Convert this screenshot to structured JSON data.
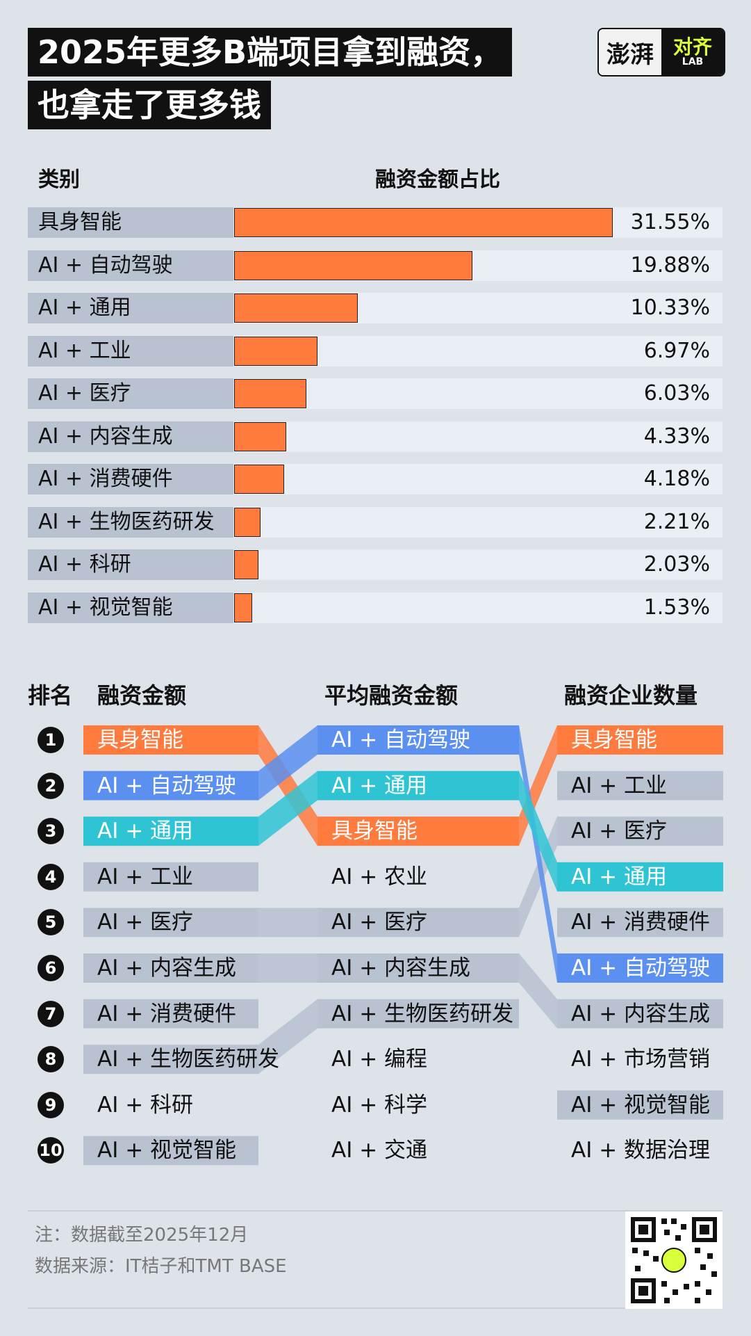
{
  "title_line1": "2025年更多B端项目拿到融资，",
  "title_line2": "也拿走了更多钱",
  "logo": {
    "left": "澎湃",
    "right_top": "对齐",
    "right_bottom": "LAB"
  },
  "chart_data": [
    {
      "type": "bar",
      "orientation": "horizontal",
      "header_category": "类别",
      "header_value": "融资金额占比",
      "categories": [
        "具身智能",
        "AI + 自动驾驶",
        "AI + 通用",
        "AI + 工业",
        "AI + 医疗",
        "AI + 内容生成",
        "AI + 消费硬件",
        "AI + 生物医药研发",
        "AI + 科研",
        "AI + 视觉智能"
      ],
      "values": [
        31.55,
        19.88,
        10.33,
        6.97,
        6.03,
        4.33,
        4.18,
        2.21,
        2.03,
        1.53
      ],
      "labels": [
        "31.55%",
        "19.88%",
        "10.33%",
        "6.97%",
        "6.03%",
        "4.33%",
        "4.18%",
        "2.21%",
        "2.03%",
        "1.53%"
      ],
      "bar_color": "#ff7a3d"
    },
    {
      "type": "table",
      "headers": [
        "排名",
        "融资金额",
        "平均融资金额",
        "融资企业数量"
      ],
      "ranks": [
        "1",
        "2",
        "3",
        "4",
        "5",
        "6",
        "7",
        "8",
        "9",
        "10"
      ],
      "columns": [
        [
          "具身智能",
          "AI + 自动驾驶",
          "AI + 通用",
          "AI + 工业",
          "AI + 医疗",
          "AI + 内容生成",
          "AI + 消费硬件",
          "AI + 生物医药研发",
          "AI + 科研",
          "AI + 视觉智能"
        ],
        [
          "AI + 自动驾驶",
          "AI + 通用",
          "具身智能",
          "AI + 农业",
          "AI + 医疗",
          "AI + 内容生成",
          "AI + 生物医药研发",
          "AI + 编程",
          "AI + 科学",
          "AI + 交通"
        ],
        [
          "具身智能",
          "AI + 工业",
          "AI + 医疗",
          "AI + 通用",
          "AI + 消费硬件",
          "AI + 自动驾驶",
          "AI + 内容生成",
          "AI + 市场营销",
          "AI + 视觉智能",
          "AI + 数据治理"
        ]
      ],
      "highlight_colors": {
        "具身智能": "#ff7a3d",
        "AI + 自动驾驶": "#5b8ff0",
        "AI + 通用": "#2fc4d4",
        "other": "#b9c2d1"
      }
    }
  ],
  "note": "注：数据截至2025年12月",
  "source": "数据来源：IT桔子和TMT BASE"
}
